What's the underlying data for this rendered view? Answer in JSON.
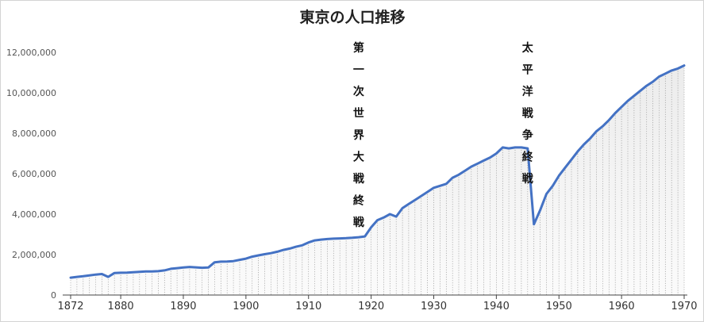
{
  "chart_data": {
    "type": "area",
    "title": "東京の人口推移",
    "xlabel": "",
    "ylabel": "",
    "xlim": [
      1872,
      1970
    ],
    "ylim": [
      0,
      12000000
    ],
    "x_ticks": [
      "1872",
      "1880",
      "1890",
      "1900",
      "1910",
      "1920",
      "1930",
      "1940",
      "1950",
      "1960",
      "1970"
    ],
    "y_ticks": [
      "0",
      "2,000,000",
      "4,000,000",
      "6,000,000",
      "8,000,000",
      "10,000,000",
      "12,000,000"
    ],
    "grid": false,
    "line_color": "#4472C4",
    "series": [
      {
        "x": [
          1872,
          1873,
          1874,
          1875,
          1876,
          1877,
          1878,
          1879,
          1880,
          1881,
          1882,
          1883,
          1884,
          1885,
          1886,
          1887,
          1888,
          1889,
          1890,
          1891,
          1892,
          1893,
          1894,
          1895,
          1896,
          1897,
          1898,
          1899,
          1900,
          1901,
          1902,
          1903,
          1904,
          1905,
          1906,
          1907,
          1908,
          1909,
          1910,
          1911,
          1912,
          1913,
          1914,
          1915,
          1916,
          1917,
          1918,
          1919,
          1920,
          1921,
          1922,
          1923,
          1924,
          1925,
          1926,
          1927,
          1928,
          1929,
          1930,
          1931,
          1932,
          1933,
          1934,
          1935,
          1936,
          1937,
          1938,
          1939,
          1940,
          1941,
          1942,
          1943,
          1944,
          1945,
          1946,
          1947,
          1948,
          1949,
          1950,
          1951,
          1952,
          1953,
          1954,
          1955,
          1956,
          1957,
          1958,
          1959,
          1960,
          1961,
          1962,
          1963,
          1964,
          1965,
          1966,
          1967,
          1968,
          1969,
          1970
        ],
        "values": [
          860000,
          900000,
          930000,
          970000,
          1010000,
          1040000,
          900000,
          1090000,
          1100000,
          1110000,
          1130000,
          1150000,
          1170000,
          1170000,
          1180000,
          1220000,
          1300000,
          1330000,
          1360000,
          1390000,
          1370000,
          1350000,
          1360000,
          1620000,
          1650000,
          1660000,
          1680000,
          1740000,
          1800000,
          1900000,
          1960000,
          2020000,
          2070000,
          2140000,
          2230000,
          2300000,
          2390000,
          2460000,
          2600000,
          2700000,
          2740000,
          2770000,
          2790000,
          2800000,
          2810000,
          2830000,
          2860000,
          2900000,
          3350000,
          3700000,
          3830000,
          4000000,
          3880000,
          4300000,
          4500000,
          4700000,
          4900000,
          5100000,
          5300000,
          5400000,
          5500000,
          5800000,
          5950000,
          6150000,
          6350000,
          6500000,
          6650000,
          6800000,
          7000000,
          7300000,
          7250000,
          7300000,
          7300000,
          7250000,
          3500000,
          4200000,
          5000000,
          5400000,
          5900000,
          6300000,
          6700000,
          7100000,
          7450000,
          7750000,
          8100000,
          8350000,
          8650000,
          9000000,
          9300000,
          9600000,
          9850000,
          10100000,
          10350000,
          10550000,
          10800000,
          10950000,
          11100000,
          11200000,
          11350000
        ]
      }
    ],
    "annotations": [
      {
        "text": "第一次世界大戦終戦",
        "x": 1918
      },
      {
        "text": "太平洋戦争終戦",
        "x": 1945
      }
    ]
  }
}
